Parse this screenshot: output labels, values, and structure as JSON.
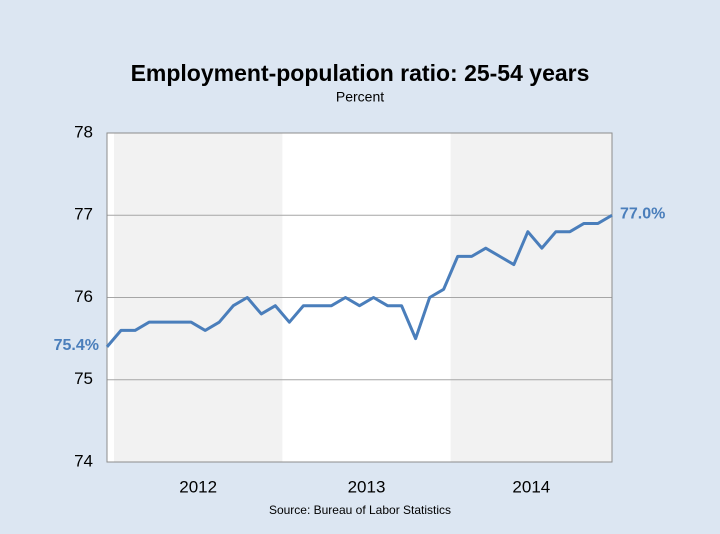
{
  "chart_data": {
    "type": "line",
    "title": "Employment-population ratio: 25-54 years",
    "subtitle": "Percent",
    "categories": [
      null,
      null,
      null,
      null,
      null,
      null,
      null,
      null,
      null,
      null,
      null,
      null,
      null,
      null,
      null,
      null,
      null,
      null,
      null,
      null,
      null,
      null,
      null,
      null,
      null,
      null,
      null,
      null,
      null,
      null,
      null,
      null,
      null,
      null,
      null,
      null,
      null
    ],
    "series": [
      {
        "color": "#4a7ebb",
        "values": [
          75.4,
          75.6,
          75.6,
          75.7,
          75.7,
          75.7,
          75.7,
          75.6,
          75.7,
          75.9,
          76.0,
          75.8,
          75.9,
          75.7,
          75.9,
          75.9,
          75.9,
          76.0,
          75.9,
          76.0,
          75.9,
          75.9,
          75.5,
          76.0,
          76.1,
          76.5,
          76.5,
          76.6,
          76.5,
          76.4,
          76.8,
          76.6,
          76.8,
          76.8,
          76.9,
          76.9,
          77.0
        ],
        "value_labels": [
          "75.4%",
          null,
          null,
          null,
          null,
          null,
          null,
          null,
          null,
          null,
          null,
          null,
          null,
          null,
          null,
          null,
          null,
          null,
          null,
          null,
          null,
          null,
          null,
          null,
          null,
          null,
          null,
          null,
          null,
          null,
          null,
          null,
          null,
          null,
          null,
          null,
          "77.0%"
        ]
      }
    ],
    "year_bands": [
      {
        "label": "2012",
        "shaded": true
      },
      {
        "label": "2013",
        "shaded": false
      },
      {
        "label": "2014",
        "shaded": true
      }
    ],
    "ylim": [
      74,
      78
    ],
    "yticks": [
      74,
      75,
      76,
      77,
      78
    ],
    "grid": true,
    "source": "Source: Bureau of Labor Statistics"
  }
}
